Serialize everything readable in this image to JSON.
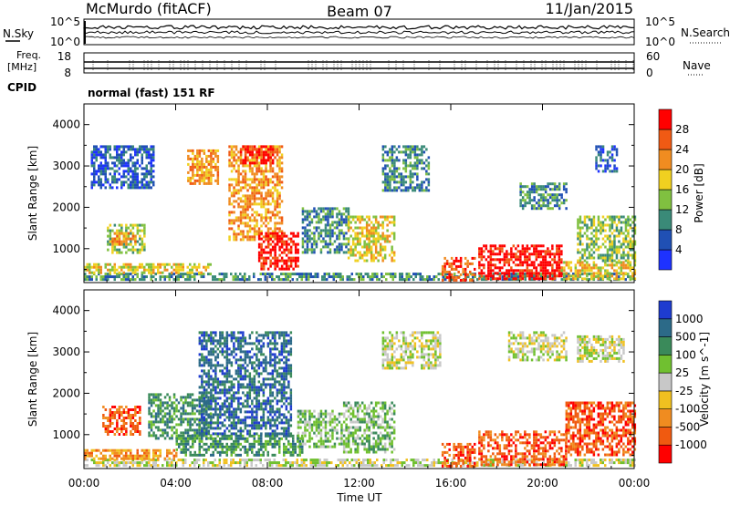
{
  "header": {
    "station": "McMurdo (fitACF)",
    "beam": "Beam 07",
    "date": "11/Jan/2015"
  },
  "mini_panels": {
    "nsky": {
      "left_label": "N.Sky",
      "right_label": "N.Search",
      "left_ticks": [
        "10^5",
        "10^0"
      ],
      "right_ticks": [
        "10^5",
        "10^0"
      ]
    },
    "freq": {
      "label_top": "Freq.",
      "label_bottom": "[MHz]",
      "left_ticks": [
        "18",
        "8"
      ],
      "right_ticks": [
        "60",
        "0"
      ],
      "right_label": "Nave"
    },
    "cpid": {
      "label": "CPID",
      "text": "normal (fast) 151 RF"
    }
  },
  "chart_data": [
    {
      "type": "heatmap",
      "name": "power",
      "ylabel": "Slant Range [km]",
      "ylim": [
        180,
        4500
      ],
      "yticks": [
        1000,
        2000,
        3000,
        4000
      ],
      "xlim": [
        0,
        24
      ],
      "colorbar": {
        "label": "Power [dB]",
        "levels": [
          4,
          8,
          12,
          16,
          20,
          24,
          28
        ],
        "colors": [
          "#1e32ff",
          "#2050b4",
          "#3a8a78",
          "#80c040",
          "#f0d020",
          "#f08c20",
          "#f05a14",
          "#ff0000"
        ]
      },
      "regions": [
        {
          "t0": 0.0,
          "t1": 24.0,
          "r0": 250,
          "r1": 420,
          "level": 2
        },
        {
          "t0": 0.0,
          "t1": 5.5,
          "r0": 420,
          "r1": 650,
          "level": 4
        },
        {
          "t0": 1.0,
          "t1": 2.6,
          "r0": 900,
          "r1": 1600,
          "level": 3
        },
        {
          "t0": 1.2,
          "t1": 2.2,
          "r0": 1100,
          "r1": 1400,
          "level": 5
        },
        {
          "t0": 0.3,
          "t1": 3.0,
          "r0": 2500,
          "r1": 3500,
          "level": 1
        },
        {
          "t0": 4.5,
          "t1": 5.8,
          "r0": 2600,
          "r1": 3400,
          "level": 5
        },
        {
          "t0": 6.3,
          "t1": 8.6,
          "r0": 1200,
          "r1": 3500,
          "level": 5
        },
        {
          "t0": 7.6,
          "t1": 9.3,
          "r0": 500,
          "r1": 1400,
          "level": 7
        },
        {
          "t0": 6.8,
          "t1": 8.2,
          "r0": 3100,
          "r1": 3500,
          "level": 7
        },
        {
          "t0": 9.5,
          "t1": 11.5,
          "r0": 900,
          "r1": 2000,
          "level": 2
        },
        {
          "t0": 11.5,
          "t1": 13.5,
          "r0": 700,
          "r1": 1800,
          "level": 4
        },
        {
          "t0": 13.0,
          "t1": 15.0,
          "r0": 2400,
          "r1": 3500,
          "level": 2
        },
        {
          "t0": 15.6,
          "t1": 17.0,
          "r0": 250,
          "r1": 800,
          "level": 6
        },
        {
          "t0": 17.2,
          "t1": 20.8,
          "r0": 300,
          "r1": 1100,
          "level": 7
        },
        {
          "t0": 20.8,
          "t1": 24.0,
          "r0": 300,
          "r1": 700,
          "level": 4
        },
        {
          "t0": 19.0,
          "t1": 21.0,
          "r0": 2000,
          "r1": 2600,
          "level": 2
        },
        {
          "t0": 21.5,
          "t1": 24.0,
          "r0": 700,
          "r1": 1800,
          "level": 3
        },
        {
          "t0": 22.3,
          "t1": 23.2,
          "r0": 2900,
          "r1": 3500,
          "level": 1
        }
      ]
    },
    {
      "type": "heatmap",
      "name": "velocity",
      "ylabel": "Slant Range [km]",
      "ylim": [
        180,
        4500
      ],
      "yticks": [
        1000,
        2000,
        3000,
        4000
      ],
      "xlim": [
        0,
        24
      ],
      "xlabel": "Time UT",
      "xticks": [
        "00:00",
        "04:00",
        "08:00",
        "12:00",
        "16:00",
        "20:00",
        "00:00"
      ],
      "colorbar": {
        "label": "Velocity [m s^-1]",
        "levels": [
          1000,
          500,
          100,
          25,
          -25,
          -100,
          -500,
          -1000
        ],
        "colors": [
          "#1e3ccf",
          "#2c6a88",
          "#3a8a5a",
          "#70c030",
          "#c8c8c8",
          "#f0c020",
          "#f08c20",
          "#f05a10",
          "#ff0000"
        ]
      },
      "regions": [
        {
          "t0": 0.0,
          "t1": 24.0,
          "r0": 250,
          "r1": 420,
          "level": 4
        },
        {
          "t0": 0.0,
          "t1": 4.0,
          "r0": 420,
          "r1": 650,
          "level": 6
        },
        {
          "t0": 0.8,
          "t1": 2.4,
          "r0": 1000,
          "r1": 1700,
          "level": 7
        },
        {
          "t0": 2.8,
          "t1": 5.5,
          "r0": 900,
          "r1": 2000,
          "level": 2
        },
        {
          "t0": 4.0,
          "t1": 9.5,
          "r0": 500,
          "r1": 1000,
          "level": 2
        },
        {
          "t0": 5.0,
          "t1": 9.0,
          "r0": 1000,
          "r1": 3500,
          "level": 1
        },
        {
          "t0": 9.3,
          "t1": 11.2,
          "r0": 700,
          "r1": 1600,
          "level": 3
        },
        {
          "t0": 11.3,
          "t1": 13.5,
          "r0": 600,
          "r1": 1800,
          "level": 3
        },
        {
          "t0": 13.0,
          "t1": 15.5,
          "r0": 2600,
          "r1": 3500,
          "level": 4
        },
        {
          "t0": 15.6,
          "t1": 17.0,
          "r0": 250,
          "r1": 800,
          "level": 7
        },
        {
          "t0": 17.2,
          "t1": 21.0,
          "r0": 300,
          "r1": 1100,
          "level": 7
        },
        {
          "t0": 21.0,
          "t1": 24.0,
          "r0": 500,
          "r1": 1800,
          "level": 7
        },
        {
          "t0": 18.5,
          "t1": 21.0,
          "r0": 2800,
          "r1": 3500,
          "level": 4
        },
        {
          "t0": 21.5,
          "t1": 23.5,
          "r0": 2800,
          "r1": 3400,
          "level": 4
        }
      ]
    }
  ]
}
